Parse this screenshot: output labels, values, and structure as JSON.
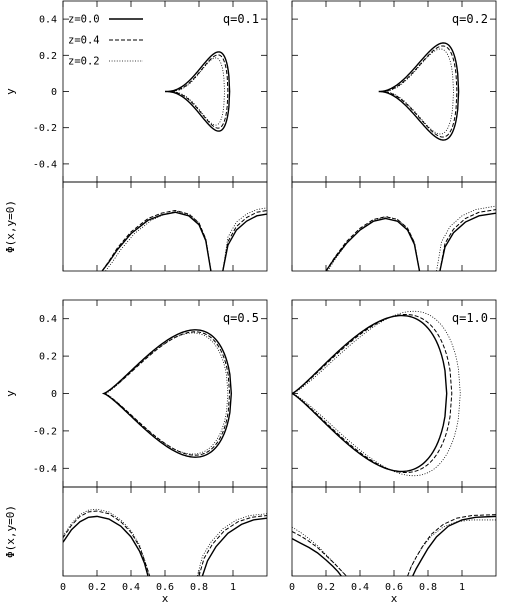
{
  "chart_data": {
    "type": "line",
    "legend": {
      "placement": "top-left of first panel",
      "entries": [
        {
          "label": "z=0.0",
          "style": "solid"
        },
        {
          "label": "z=0.4",
          "style": "dashed"
        },
        {
          "label": "z=0.2",
          "style": "dotted"
        }
      ]
    },
    "xlabel": "x",
    "upper_ylabel": "y",
    "lower_ylabel": "Φ(x,y=0)",
    "xlim": [
      0,
      1.2
    ],
    "upper_ylim": [
      -0.5,
      0.5
    ],
    "x_ticks": [
      "0",
      "0.2",
      "0.4",
      "0.6",
      "0.8",
      "1"
    ],
    "y_ticks": [
      "-0.4",
      "-0.2",
      "0",
      "0.2",
      "0.4"
    ],
    "panels": [
      {
        "q_label": "q=0.1",
        "lobes": [
          {
            "series": "z=0.0",
            "x_left": 0.6,
            "x_right": 0.98,
            "y_extent": 0.195,
            "x_at_max": 0.87
          },
          {
            "series": "z=0.4",
            "x_left": 0.61,
            "x_right": 0.97,
            "y_extent": 0.18,
            "x_at_max": 0.87
          },
          {
            "series": "z=0.2",
            "x_left": 0.62,
            "x_right": 0.95,
            "y_extent": 0.165,
            "x_at_max": 0.86
          }
        ],
        "potential": [
          {
            "series": "z=0.0",
            "x": [
              0.23,
              0.27,
              0.32,
              0.4,
              0.5,
              0.58,
              0.66,
              0.74,
              0.8,
              0.84,
              0.87,
              0.94,
              0.97,
              1.02,
              1.08,
              1.14,
              1.2
            ],
            "y": [
              0.0,
              0.1,
              0.24,
              0.42,
              0.57,
              0.63,
              0.66,
              0.62,
              0.52,
              0.34,
              0.0,
              0.0,
              0.29,
              0.46,
              0.56,
              0.62,
              0.64
            ]
          },
          {
            "series": "z=0.4",
            "x": [
              0.23,
              0.27,
              0.32,
              0.4,
              0.5,
              0.58,
              0.66,
              0.74,
              0.8,
              0.84,
              0.87,
              0.94,
              0.97,
              1.02,
              1.08,
              1.14,
              1.2
            ],
            "y": [
              0.0,
              0.11,
              0.26,
              0.44,
              0.59,
              0.65,
              0.68,
              0.64,
              0.54,
              0.36,
              0.0,
              0.0,
              0.33,
              0.5,
              0.6,
              0.66,
              0.68
            ]
          },
          {
            "series": "z=0.2",
            "x": [
              0.25,
              0.29,
              0.34,
              0.42,
              0.52,
              0.6,
              0.67,
              0.75,
              0.8,
              0.84,
              0.87,
              0.94,
              0.97,
              1.02,
              1.08,
              1.14,
              1.2
            ],
            "y": [
              0.0,
              0.1,
              0.24,
              0.42,
              0.57,
              0.64,
              0.67,
              0.63,
              0.54,
              0.36,
              0.0,
              0.0,
              0.38,
              0.55,
              0.64,
              0.69,
              0.71
            ]
          }
        ]
      },
      {
        "q_label": "q=0.2",
        "lobes": [
          {
            "series": "z=0.0",
            "x_left": 0.51,
            "x_right": 0.98,
            "y_extent": 0.24,
            "x_at_max": 0.83
          },
          {
            "series": "z=0.4",
            "x_left": 0.52,
            "x_right": 0.97,
            "y_extent": 0.225,
            "x_at_max": 0.83
          },
          {
            "series": "z=0.2",
            "x_left": 0.53,
            "x_right": 0.95,
            "y_extent": 0.21,
            "x_at_max": 0.82
          }
        ],
        "potential": [
          {
            "series": "z=0.0",
            "x": [
              0.2,
              0.25,
              0.32,
              0.4,
              0.48,
              0.55,
              0.62,
              0.68,
              0.72,
              0.75,
              0.87,
              0.9,
              0.95,
              1.02,
              1.1,
              1.2
            ],
            "y": [
              0.0,
              0.14,
              0.31,
              0.46,
              0.56,
              0.59,
              0.56,
              0.46,
              0.3,
              0.0,
              0.0,
              0.27,
              0.43,
              0.55,
              0.62,
              0.65
            ]
          },
          {
            "series": "z=0.4",
            "x": [
              0.2,
              0.25,
              0.32,
              0.4,
              0.48,
              0.55,
              0.62,
              0.68,
              0.72,
              0.75,
              0.87,
              0.9,
              0.95,
              1.02,
              1.1,
              1.2
            ],
            "y": [
              0.0,
              0.15,
              0.33,
              0.48,
              0.58,
              0.61,
              0.58,
              0.48,
              0.32,
              0.0,
              0.0,
              0.31,
              0.47,
              0.59,
              0.66,
              0.69
            ]
          },
          {
            "series": "z=0.2",
            "x": [
              0.21,
              0.26,
              0.33,
              0.41,
              0.49,
              0.56,
              0.62,
              0.68,
              0.72,
              0.75,
              0.85,
              0.88,
              0.93,
              1.0,
              1.08,
              1.2
            ],
            "y": [
              0.0,
              0.15,
              0.33,
              0.48,
              0.58,
              0.61,
              0.58,
              0.48,
              0.32,
              0.0,
              0.0,
              0.33,
              0.5,
              0.62,
              0.69,
              0.73
            ]
          }
        ]
      },
      {
        "q_label": "q=0.5",
        "lobes": [
          {
            "series": "z=0.0",
            "x_left": 0.24,
            "x_right": 0.99,
            "y_extent": 0.31,
            "x_at_max": 0.66
          },
          {
            "series": "z=0.4",
            "x_left": 0.24,
            "x_right": 0.98,
            "y_extent": 0.3,
            "x_at_max": 0.66
          },
          {
            "series": "z=0.2",
            "x_left": 0.25,
            "x_right": 0.97,
            "y_extent": 0.295,
            "x_at_max": 0.65
          }
        ],
        "potential": [
          {
            "series": "z=0.0",
            "x": [
              0.0,
              0.05,
              0.1,
              0.15,
              0.2,
              0.27,
              0.34,
              0.4,
              0.45,
              0.48,
              0.5,
              0.82,
              0.85,
              0.9,
              0.97,
              1.05,
              1.12,
              1.2
            ],
            "y": [
              0.38,
              0.52,
              0.61,
              0.66,
              0.67,
              0.64,
              0.56,
              0.44,
              0.28,
              0.14,
              0.0,
              0.0,
              0.17,
              0.33,
              0.48,
              0.58,
              0.63,
              0.65
            ]
          },
          {
            "series": "z=0.4",
            "x": [
              0.0,
              0.05,
              0.1,
              0.15,
              0.2,
              0.27,
              0.34,
              0.4,
              0.45,
              0.48,
              0.51,
              0.8,
              0.83,
              0.88,
              0.95,
              1.03,
              1.11,
              1.2
            ],
            "y": [
              0.43,
              0.57,
              0.67,
              0.72,
              0.73,
              0.7,
              0.61,
              0.49,
              0.33,
              0.17,
              0.0,
              0.0,
              0.2,
              0.36,
              0.51,
              0.61,
              0.66,
              0.68
            ]
          },
          {
            "series": "z=0.2",
            "x": [
              0.0,
              0.05,
              0.1,
              0.15,
              0.2,
              0.27,
              0.34,
              0.4,
              0.45,
              0.48,
              0.51,
              0.79,
              0.82,
              0.87,
              0.94,
              1.02,
              1.1,
              1.2
            ],
            "y": [
              0.45,
              0.59,
              0.69,
              0.74,
              0.75,
              0.72,
              0.63,
              0.51,
              0.35,
              0.18,
              0.0,
              0.0,
              0.22,
              0.38,
              0.53,
              0.63,
              0.68,
              0.7
            ]
          }
        ]
      },
      {
        "q_label": "q=1.0",
        "lobes": [
          {
            "series": "z=0.0",
            "x_left": 0.0,
            "x_right": 0.91,
            "y_extent": 0.38,
            "x_at_max": 0.5
          },
          {
            "series": "z=0.4",
            "x_left": 0.0,
            "x_right": 0.94,
            "y_extent": 0.385,
            "x_at_max": 0.52
          },
          {
            "series": "z=0.2",
            "x_left": 0.0,
            "x_right": 0.99,
            "y_extent": 0.4,
            "x_at_max": 0.56
          }
        ],
        "potential": [
          {
            "series": "z=0.0",
            "x": [
              0.0,
              0.05,
              0.1,
              0.15,
              0.2,
              0.24,
              0.27,
              0.29,
              0.71,
              0.73,
              0.76,
              0.8,
              0.85,
              0.92,
              1.0,
              1.08,
              1.2
            ],
            "y": [
              0.42,
              0.37,
              0.32,
              0.26,
              0.18,
              0.11,
              0.05,
              0.0,
              0.0,
              0.08,
              0.18,
              0.31,
              0.44,
              0.56,
              0.63,
              0.66,
              0.67
            ]
          },
          {
            "series": "z=0.4",
            "x": [
              0.0,
              0.05,
              0.1,
              0.15,
              0.2,
              0.25,
              0.29,
              0.32,
              0.68,
              0.7,
              0.73,
              0.77,
              0.82,
              0.89,
              0.97,
              1.06,
              1.2
            ],
            "y": [
              0.5,
              0.45,
              0.39,
              0.32,
              0.23,
              0.14,
              0.06,
              0.0,
              0.0,
              0.1,
              0.21,
              0.34,
              0.47,
              0.58,
              0.65,
              0.68,
              0.69
            ]
          },
          {
            "series": "z=0.2",
            "x": [
              0.0,
              0.05,
              0.1,
              0.15,
              0.2,
              0.25,
              0.29,
              0.32,
              0.68,
              0.7,
              0.73,
              0.77,
              0.82,
              0.89,
              0.97,
              1.06,
              1.2
            ],
            "y": [
              0.55,
              0.49,
              0.42,
              0.34,
              0.24,
              0.14,
              0.06,
              0.0,
              0.0,
              0.1,
              0.21,
              0.33,
              0.45,
              0.55,
              0.61,
              0.63,
              0.63
            ]
          }
        ]
      }
    ]
  }
}
